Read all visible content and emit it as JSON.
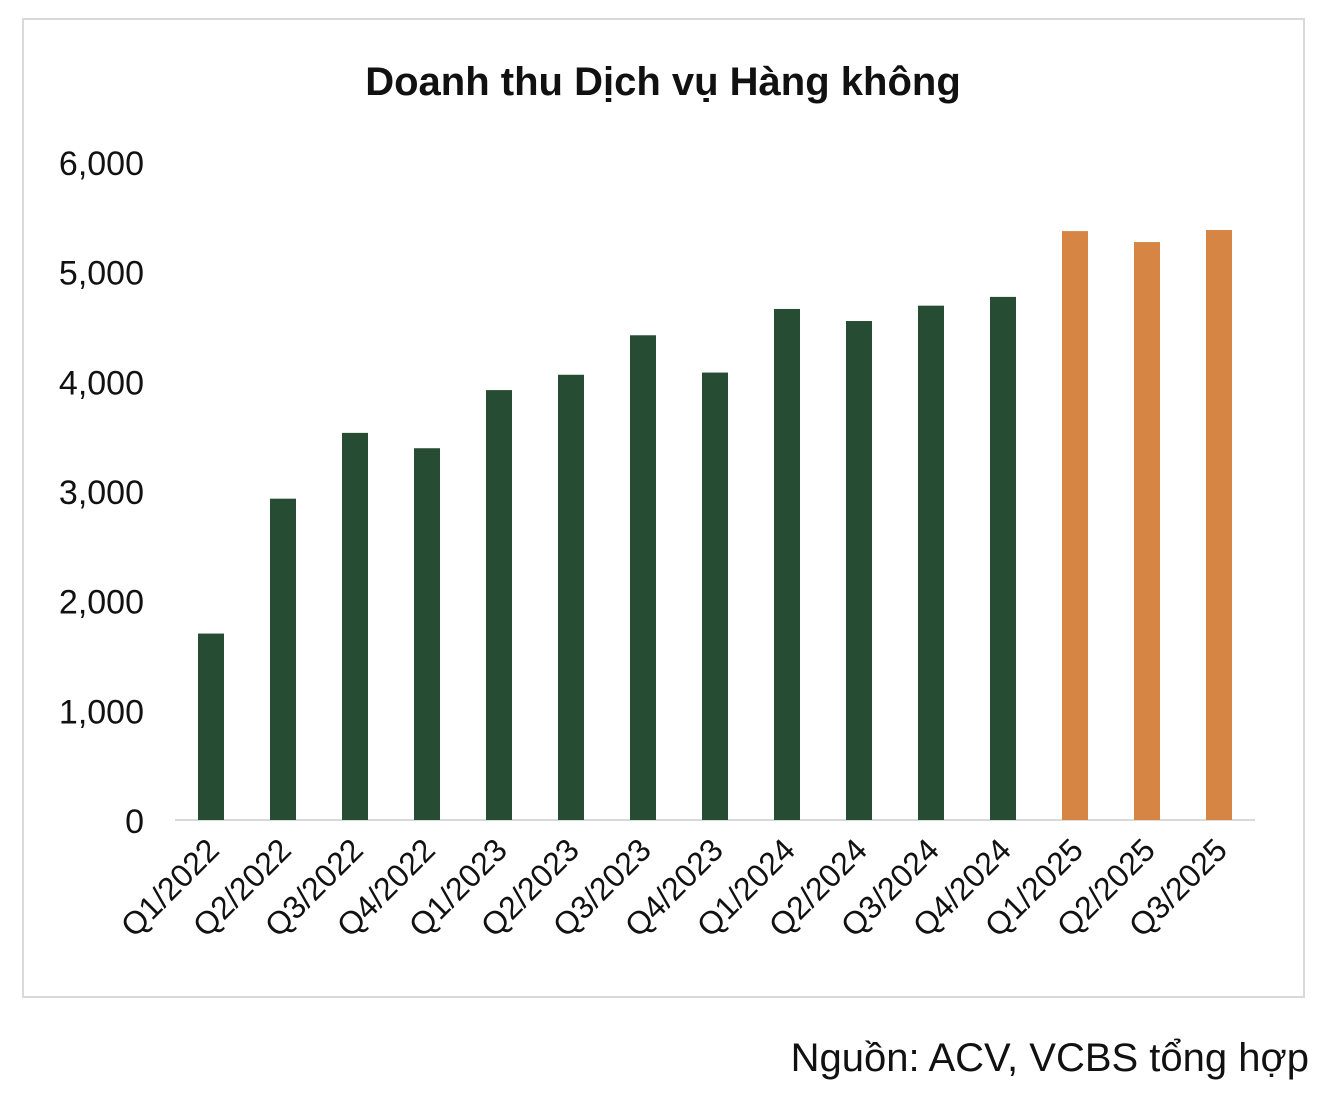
{
  "chart_data": {
    "type": "bar",
    "title": "Doanh thu Dịch vụ Hàng không",
    "xlabel": "",
    "ylabel": "",
    "categories": [
      "Q1/2022",
      "Q2/2022",
      "Q3/2022",
      "Q4/2022",
      "Q1/2023",
      "Q2/2023",
      "Q3/2023",
      "Q4/2023",
      "Q1/2024",
      "Q2/2024",
      "Q3/2024",
      "Q4/2024",
      "Q1/2025",
      "Q2/2025",
      "Q3/2025"
    ],
    "values": [
      1700,
      2930,
      3530,
      3390,
      3920,
      4060,
      4420,
      4080,
      4660,
      4550,
      4690,
      4770,
      5370,
      5270,
      5380
    ],
    "bar_colors": [
      "#264d33",
      "#264d33",
      "#264d33",
      "#264d33",
      "#264d33",
      "#264d33",
      "#264d33",
      "#264d33",
      "#264d33",
      "#264d33",
      "#264d33",
      "#264d33",
      "#d78545",
      "#d78545",
      "#d78545"
    ],
    "ylim": [
      0,
      6000
    ],
    "yticks": [
      0,
      1000,
      2000,
      3000,
      4000,
      5000,
      6000
    ],
    "ytick_labels": [
      "0",
      "1,000",
      "2,000",
      "3,000",
      "4,000",
      "5,000",
      "6,000"
    ],
    "grid": false,
    "legend": "none"
  },
  "source": "Nguồn: ACV, VCBS tổng hợp"
}
